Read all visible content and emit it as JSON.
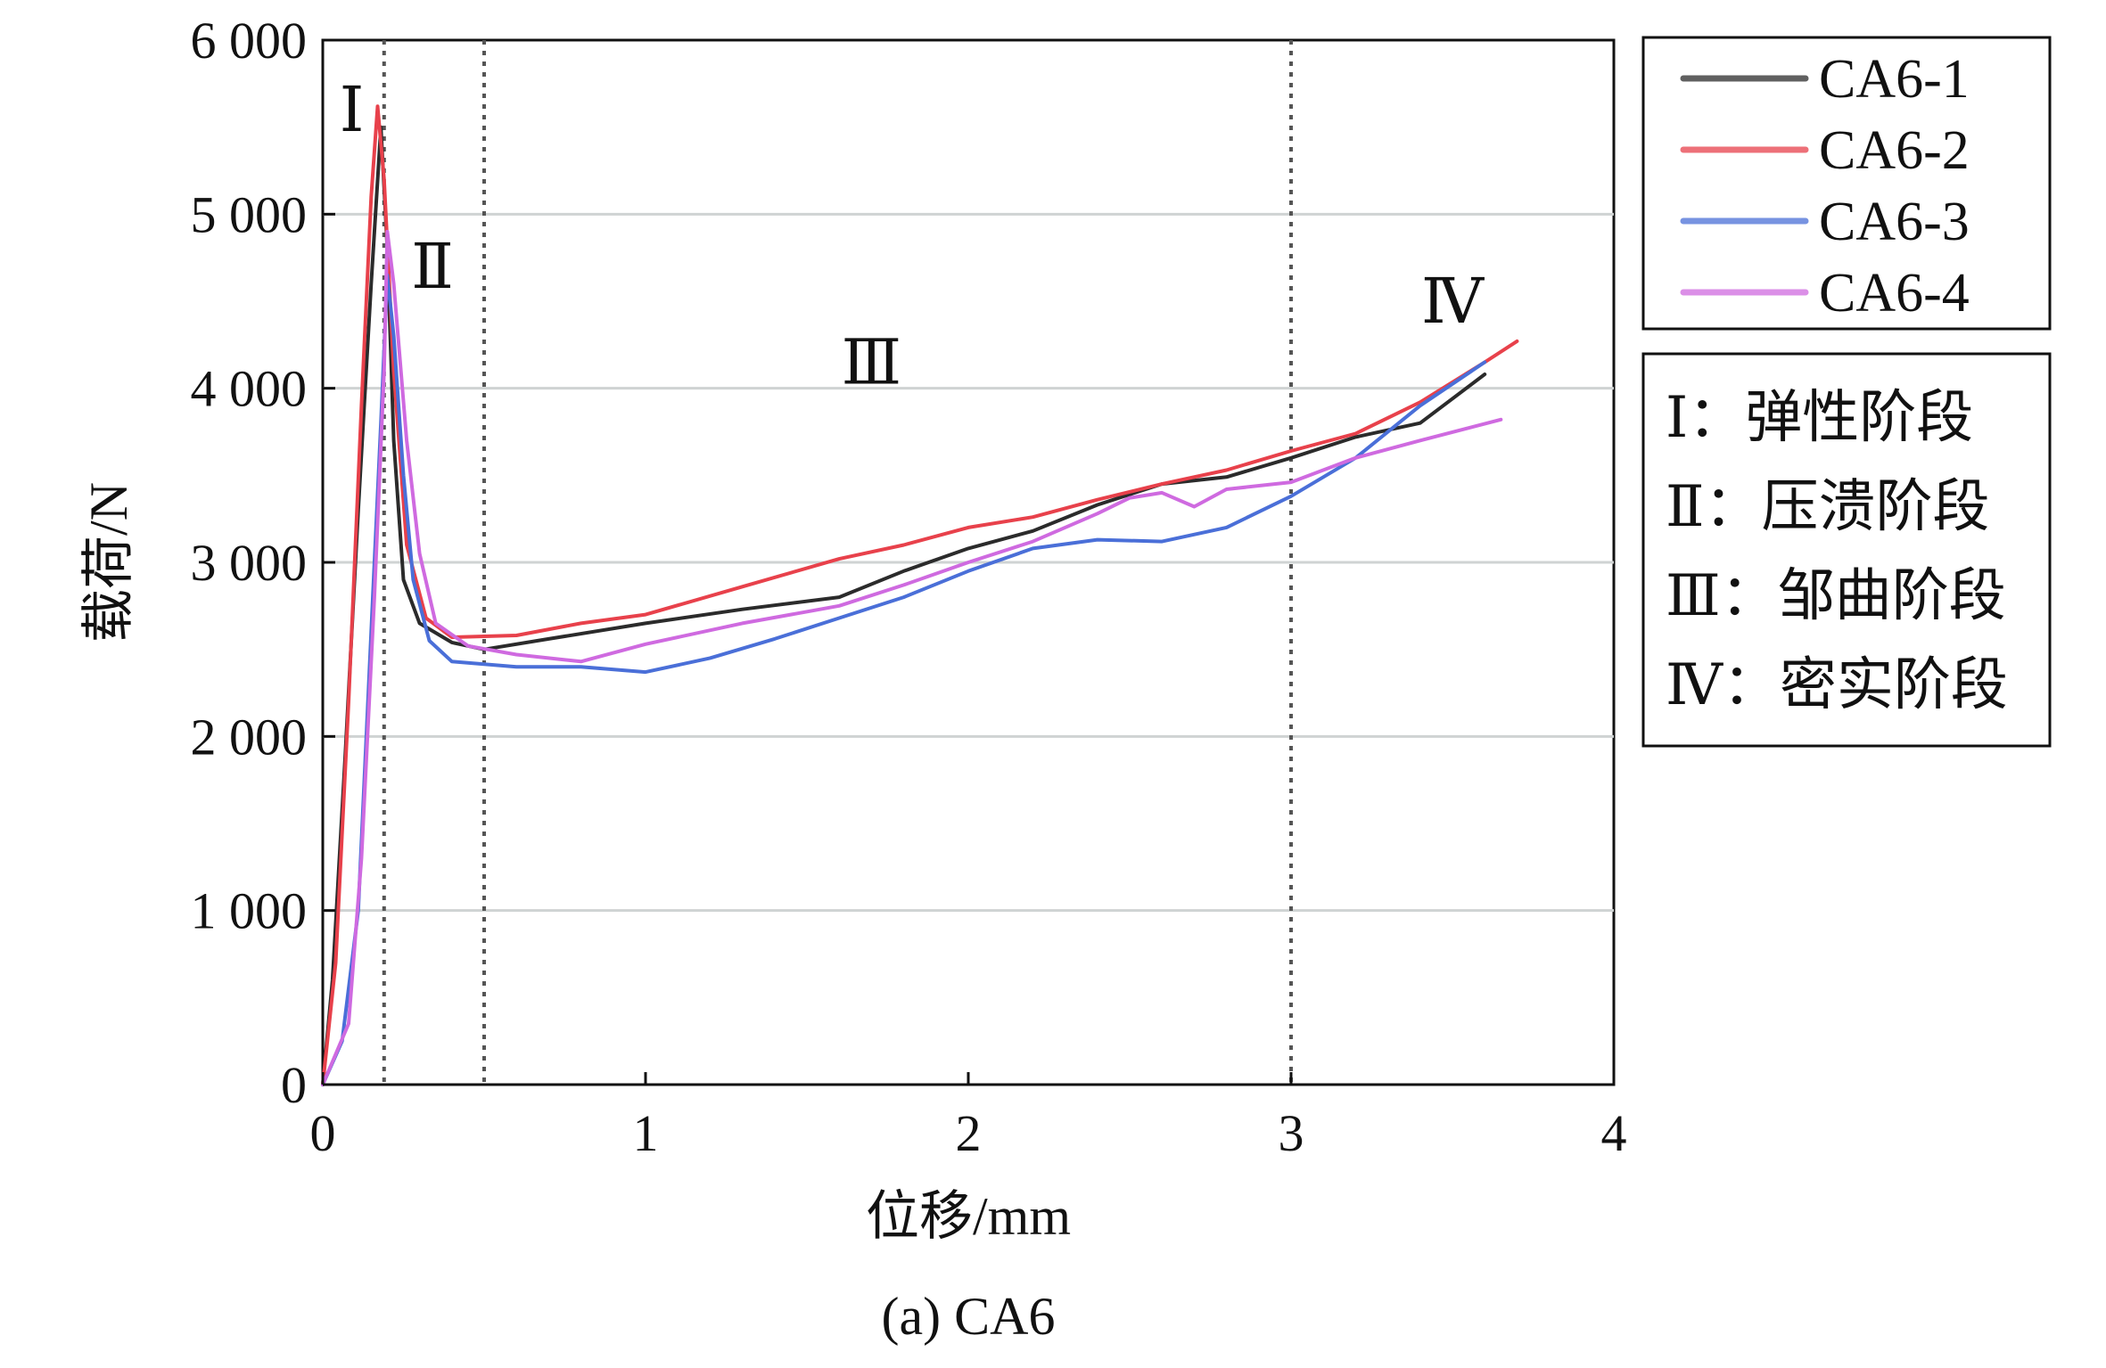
{
  "chart_data": {
    "type": "line",
    "xlabel": "位移/mm",
    "ylabel": "载荷/N",
    "caption": "(a) CA6",
    "xlim": [
      0,
      4
    ],
    "ylim": [
      0,
      6000
    ],
    "x_ticks": [
      0,
      1,
      2,
      3,
      4
    ],
    "x_tick_labels": [
      "0",
      "1",
      "2",
      "3",
      "4"
    ],
    "y_ticks": [
      0,
      1000,
      2000,
      3000,
      4000,
      5000,
      6000
    ],
    "y_tick_labels": [
      "0",
      "1 000",
      "2 000",
      "3 000",
      "4 000",
      "5 000",
      "6 000"
    ],
    "grid": "horizontal",
    "legend_position": "right-top",
    "stage_dividers_x": [
      0.19,
      0.5,
      3.0
    ],
    "stage_markers": [
      {
        "label": "Ⅰ",
        "x": 0.09,
        "y": 5600
      },
      {
        "label": "Ⅱ",
        "x": 0.34,
        "y": 4700
      },
      {
        "label": "Ⅲ",
        "x": 1.7,
        "y": 4150
      },
      {
        "label": "Ⅳ",
        "x": 3.5,
        "y": 4500
      }
    ],
    "stage_legend": [
      "Ⅰ：弹性阶段",
      "Ⅱ：压溃阶段",
      "Ⅲ：邹曲阶段",
      "Ⅳ：密实阶段"
    ],
    "series": [
      {
        "name": "CA6-1",
        "color": "#2b2b2b",
        "points": [
          [
            0,
            0
          ],
          [
            0.03,
            600
          ],
          [
            0.07,
            1900
          ],
          [
            0.11,
            3300
          ],
          [
            0.15,
            4600
          ],
          [
            0.18,
            5500
          ],
          [
            0.2,
            4800
          ],
          [
            0.22,
            3700
          ],
          [
            0.25,
            2900
          ],
          [
            0.3,
            2650
          ],
          [
            0.4,
            2540
          ],
          [
            0.5,
            2500
          ],
          [
            0.7,
            2560
          ],
          [
            1.0,
            2650
          ],
          [
            1.3,
            2730
          ],
          [
            1.6,
            2800
          ],
          [
            1.8,
            2950
          ],
          [
            2.0,
            3080
          ],
          [
            2.2,
            3180
          ],
          [
            2.4,
            3330
          ],
          [
            2.6,
            3450
          ],
          [
            2.8,
            3490
          ],
          [
            3.0,
            3600
          ],
          [
            3.2,
            3720
          ],
          [
            3.4,
            3800
          ],
          [
            3.6,
            4080
          ]
        ]
      },
      {
        "name": "CA6-2",
        "color": "#e8414b",
        "points": [
          [
            0,
            0
          ],
          [
            0.04,
            700
          ],
          [
            0.08,
            2200
          ],
          [
            0.12,
            3900
          ],
          [
            0.15,
            5100
          ],
          [
            0.17,
            5620
          ],
          [
            0.19,
            5200
          ],
          [
            0.22,
            4100
          ],
          [
            0.26,
            3100
          ],
          [
            0.32,
            2680
          ],
          [
            0.4,
            2570
          ],
          [
            0.6,
            2580
          ],
          [
            0.8,
            2650
          ],
          [
            1.0,
            2700
          ],
          [
            1.3,
            2860
          ],
          [
            1.6,
            3020
          ],
          [
            1.8,
            3100
          ],
          [
            2.0,
            3200
          ],
          [
            2.2,
            3260
          ],
          [
            2.4,
            3360
          ],
          [
            2.6,
            3450
          ],
          [
            2.8,
            3530
          ],
          [
            3.0,
            3640
          ],
          [
            3.2,
            3740
          ],
          [
            3.4,
            3920
          ],
          [
            3.6,
            4150
          ],
          [
            3.7,
            4270
          ]
        ]
      },
      {
        "name": "CA6-3",
        "color": "#4a6fd8",
        "points": [
          [
            0,
            0
          ],
          [
            0.06,
            250
          ],
          [
            0.11,
            1000
          ],
          [
            0.15,
            2600
          ],
          [
            0.18,
            3800
          ],
          [
            0.2,
            4650
          ],
          [
            0.22,
            4300
          ],
          [
            0.25,
            3500
          ],
          [
            0.28,
            2900
          ],
          [
            0.33,
            2550
          ],
          [
            0.4,
            2430
          ],
          [
            0.6,
            2400
          ],
          [
            0.8,
            2400
          ],
          [
            1.0,
            2370
          ],
          [
            1.2,
            2450
          ],
          [
            1.4,
            2560
          ],
          [
            1.6,
            2680
          ],
          [
            1.8,
            2800
          ],
          [
            2.0,
            2950
          ],
          [
            2.2,
            3080
          ],
          [
            2.4,
            3130
          ],
          [
            2.6,
            3120
          ],
          [
            2.8,
            3200
          ],
          [
            3.0,
            3380
          ],
          [
            3.2,
            3600
          ],
          [
            3.4,
            3900
          ],
          [
            3.6,
            4150
          ]
        ]
      },
      {
        "name": "CA6-4",
        "color": "#cf6ae0",
        "points": [
          [
            0,
            0
          ],
          [
            0.08,
            350
          ],
          [
            0.12,
            1300
          ],
          [
            0.16,
            2800
          ],
          [
            0.19,
            4100
          ],
          [
            0.2,
            4900
          ],
          [
            0.22,
            4600
          ],
          [
            0.26,
            3700
          ],
          [
            0.3,
            3050
          ],
          [
            0.35,
            2650
          ],
          [
            0.45,
            2520
          ],
          [
            0.6,
            2470
          ],
          [
            0.8,
            2430
          ],
          [
            1.0,
            2530
          ],
          [
            1.3,
            2650
          ],
          [
            1.6,
            2750
          ],
          [
            1.8,
            2870
          ],
          [
            2.0,
            3000
          ],
          [
            2.2,
            3120
          ],
          [
            2.4,
            3280
          ],
          [
            2.5,
            3370
          ],
          [
            2.6,
            3400
          ],
          [
            2.7,
            3320
          ],
          [
            2.8,
            3420
          ],
          [
            3.0,
            3460
          ],
          [
            3.2,
            3600
          ],
          [
            3.4,
            3700
          ],
          [
            3.65,
            3820
          ]
        ]
      }
    ]
  }
}
